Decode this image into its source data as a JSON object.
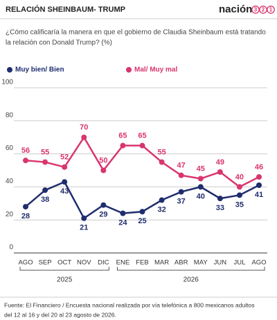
{
  "header": {
    "title": "RELACIÓN SHEINBAUM- TRUMP",
    "brand": {
      "name": "nación",
      "digits": [
        "3",
        "2",
        "1"
      ]
    }
  },
  "chart_data": {
    "type": "line",
    "subtitle": [
      "¿Cómo calificaría la manera en que el gobierno de Claudia Sheinbaum está tratando",
      "la relación con Donald Trump? (%)"
    ],
    "categories": [
      "AGO",
      "SEP",
      "OCT",
      "NOV",
      "DIC",
      "ENE",
      "FEB",
      "MAR",
      "ABR",
      "MAY",
      "JUN",
      "JUL",
      "AGO"
    ],
    "year_groups": [
      {
        "label": "2025",
        "span": 5
      },
      {
        "label": "2026",
        "span": 8
      }
    ],
    "series": [
      {
        "name": "Muy bien/ Bien",
        "color": "#1f2d6e",
        "values": [
          28,
          38,
          43,
          21,
          29,
          24,
          25,
          32,
          37,
          40,
          33,
          35,
          41
        ]
      },
      {
        "name": "Mal/ Muy mal",
        "color": "#d9356f",
        "values": [
          56,
          55,
          52,
          70,
          50,
          65,
          65,
          55,
          47,
          45,
          49,
          40,
          46
        ]
      }
    ],
    "ylim": [
      0,
      100
    ],
    "yticks": [
      0,
      20,
      40,
      60,
      80,
      100
    ],
    "grid": true
  },
  "footer": [
    "Fuente: El Financiero /  Encuesta nacional realizada por vía telefónica a 800 mexicanos adultos",
    "del 12 al 16  y del 20 al 23 agosto de 2026."
  ]
}
